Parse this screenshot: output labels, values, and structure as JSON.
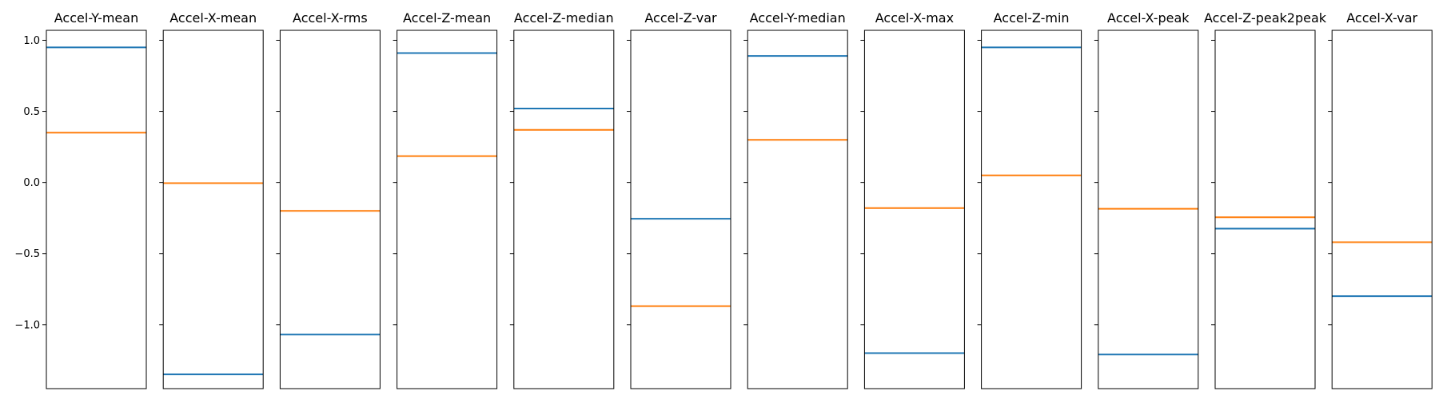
{
  "chart_data": {
    "type": "line",
    "layout": "small-multiples-horizontal-lines",
    "ylim": [
      -1.45,
      1.07
    ],
    "yticks": [
      1.0,
      0.5,
      0.0,
      -0.5,
      -1.0
    ],
    "ytick_labels": [
      "1.0",
      "0.5",
      "0.0",
      "−0.5",
      "−1.0"
    ],
    "grid": false,
    "colors": {
      "blue": "#1f77b4",
      "orange": "#ff7f0e"
    },
    "panels": [
      {
        "title": "Accel-Y-mean",
        "blue": 0.95,
        "orange": 0.35
      },
      {
        "title": "Accel-X-mean",
        "blue": -1.35,
        "orange": -0.005
      },
      {
        "title": "Accel-X-rms",
        "blue": -1.07,
        "orange": -0.2
      },
      {
        "title": "Accel-Z-mean",
        "blue": 0.91,
        "orange": 0.185
      },
      {
        "title": "Accel-Z-median",
        "blue": 0.52,
        "orange": 0.37
      },
      {
        "title": "Accel-Z-var",
        "blue": -0.255,
        "orange": -0.87
      },
      {
        "title": "Accel-Y-median",
        "blue": 0.89,
        "orange": 0.3
      },
      {
        "title": "Accel-X-max",
        "blue": -1.2,
        "orange": -0.18
      },
      {
        "title": "Accel-Z-min",
        "blue": 0.95,
        "orange": 0.05
      },
      {
        "title": "Accel-X-peak",
        "blue": -1.21,
        "orange": -0.185
      },
      {
        "title": "Accel-Z-peak2peak",
        "blue": -0.325,
        "orange": -0.245
      },
      {
        "title": "Accel-X-var",
        "blue": -0.8,
        "orange": -0.42
      }
    ]
  }
}
